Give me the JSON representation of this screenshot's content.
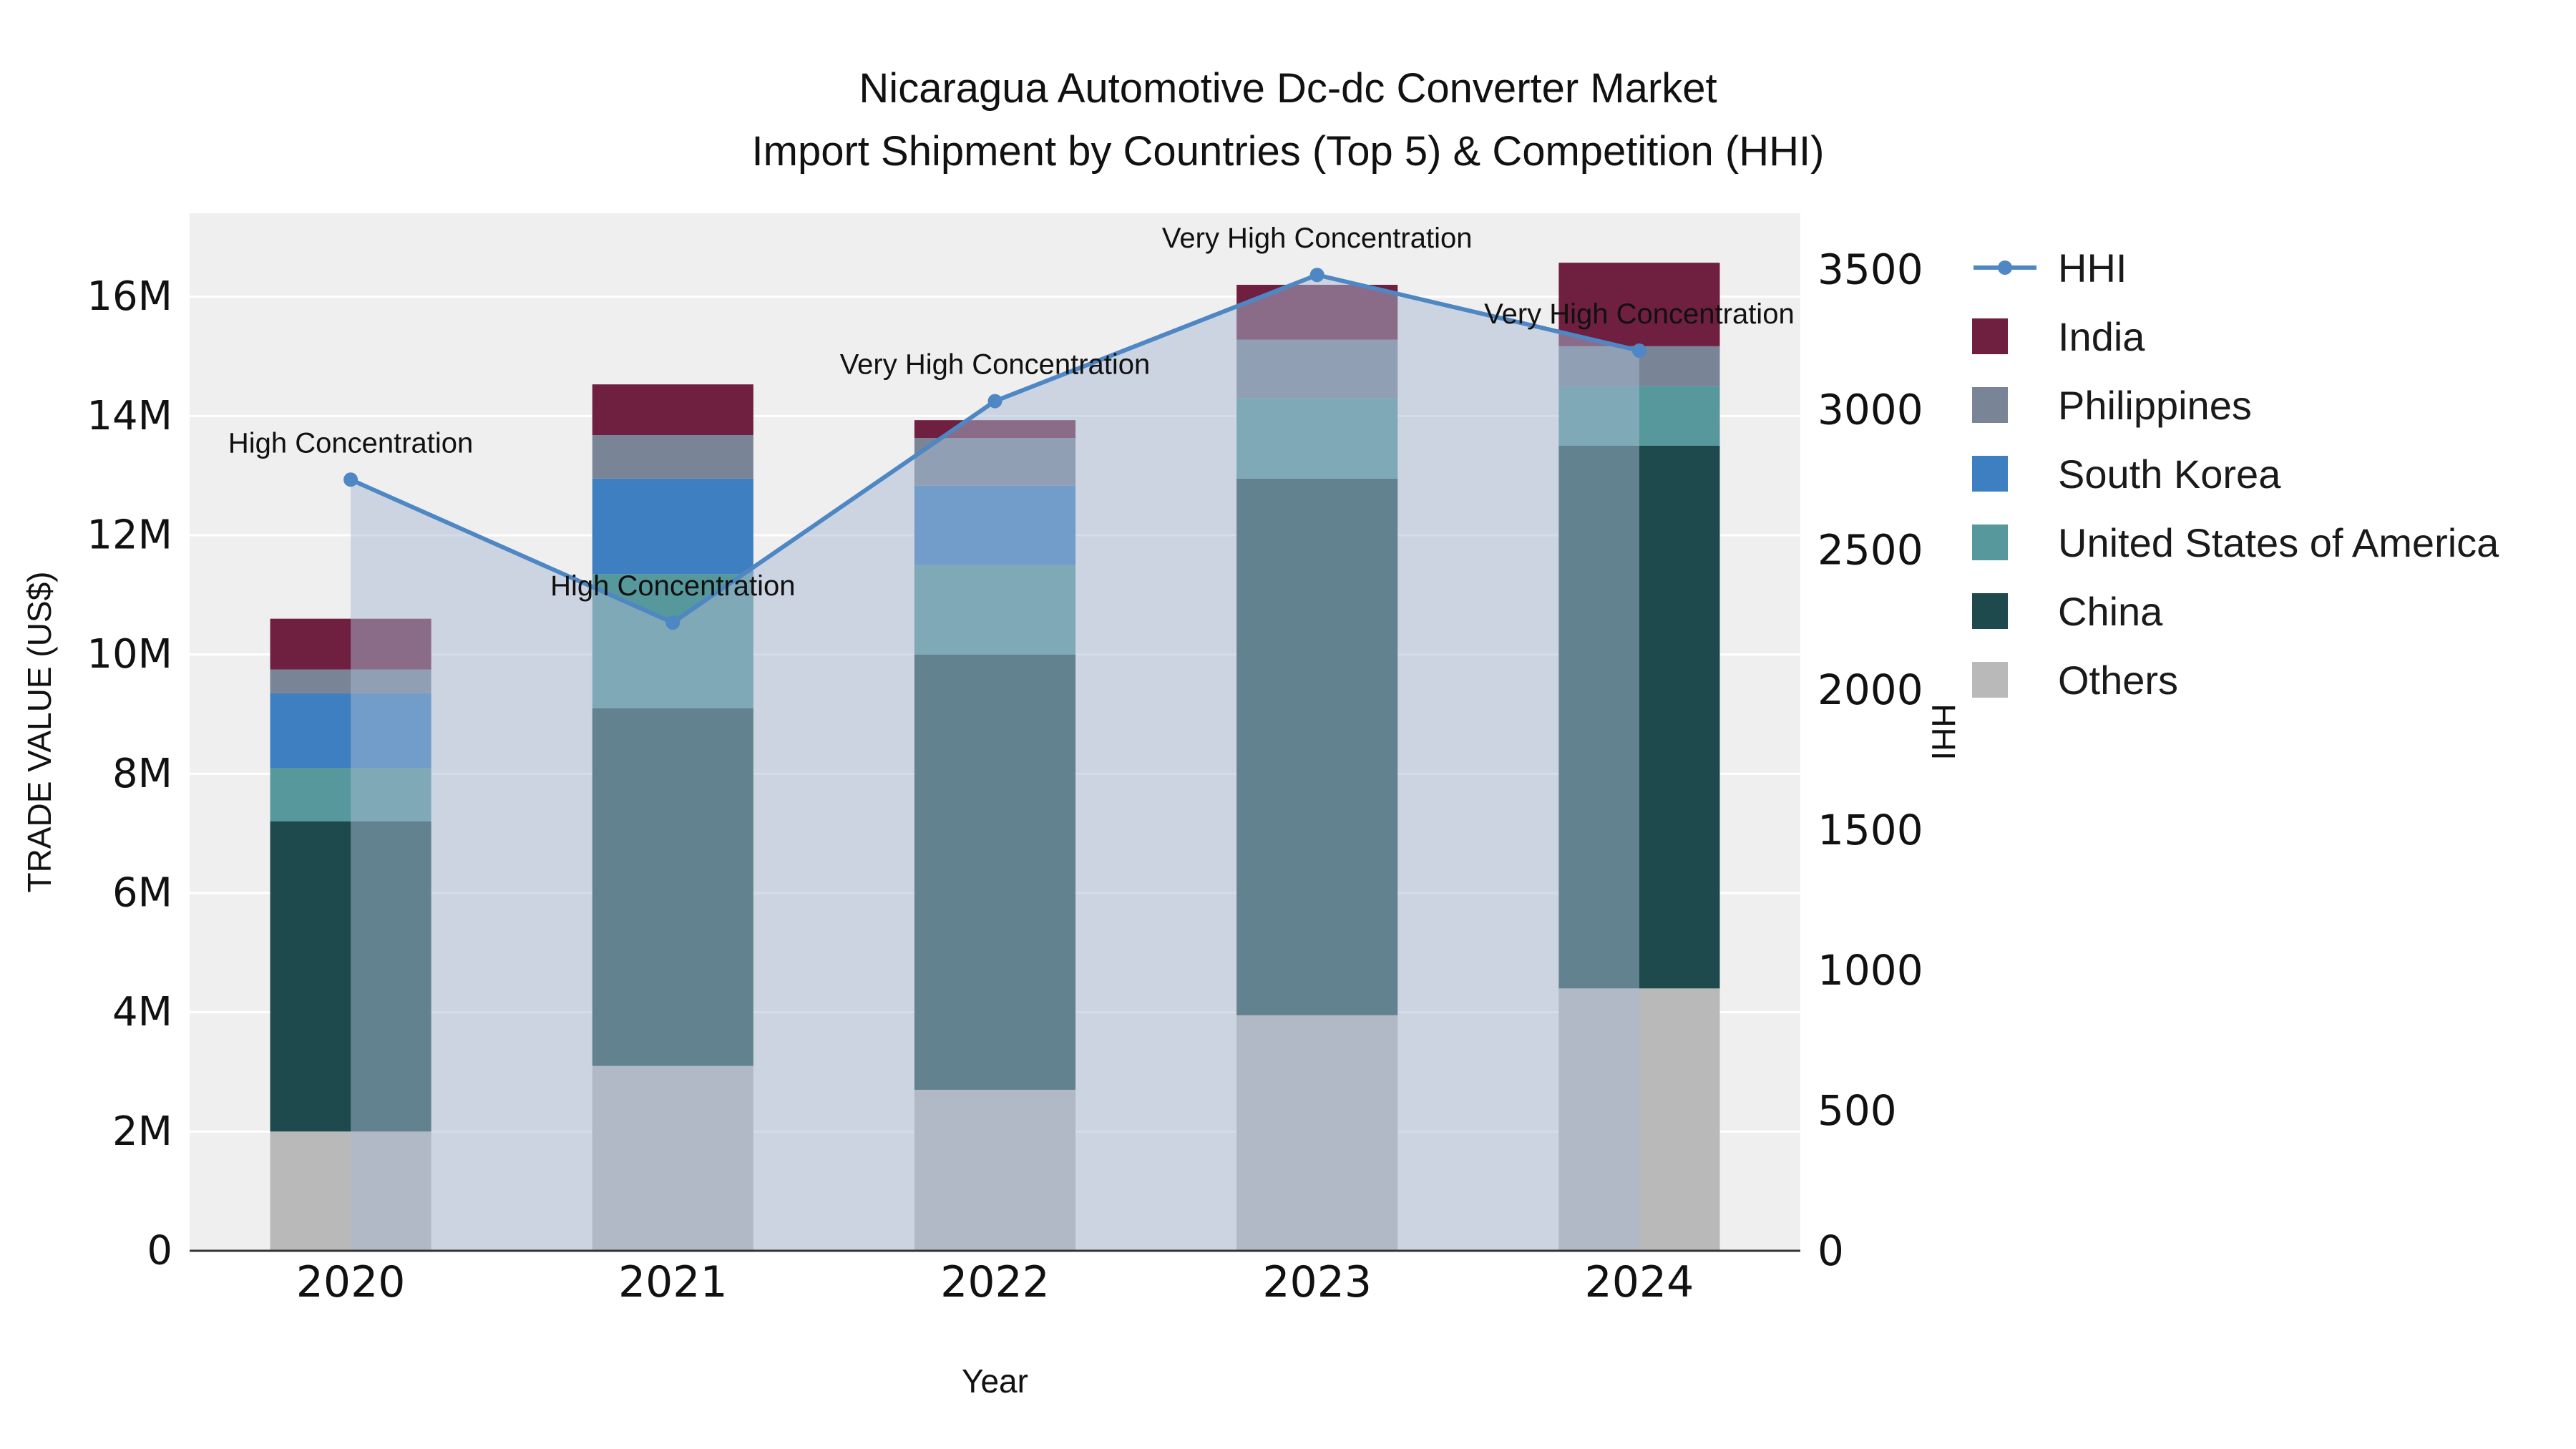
{
  "title": {
    "line1": "Nicaragua Automotive Dc-dc Converter Market",
    "line2": "Import Shipment by Countries (Top 5) & Competition (HHI)"
  },
  "chart_data": {
    "type": "combo-stacked-bar-line",
    "categories": [
      "2020",
      "2021",
      "2022",
      "2023",
      "2024"
    ],
    "xlabel": "Year",
    "ylabel_left": "TRADE VALUE (US$)",
    "ylabel_right": "HHI",
    "ylim_left": [
      0,
      17400000
    ],
    "ylim_right": [
      0,
      3700
    ],
    "y_left_ticks": [
      "0",
      "2M",
      "4M",
      "6M",
      "8M",
      "10M",
      "12M",
      "14M",
      "16M"
    ],
    "y_left_tick_values": [
      0,
      2000000,
      4000000,
      6000000,
      8000000,
      10000000,
      12000000,
      14000000,
      16000000
    ],
    "y_right_ticks": [
      "0",
      "500",
      "1000",
      "1500",
      "2000",
      "2500",
      "3000",
      "3500"
    ],
    "y_right_tick_values": [
      0,
      500,
      1000,
      1500,
      2000,
      2500,
      3000,
      3500
    ],
    "grid_color": "#ffffff",
    "plot_bg_color": "#efefef",
    "bar_series": [
      {
        "name": "Others",
        "color": "#b9b9b9",
        "values": [
          2000000,
          3100000,
          2700000,
          3950000,
          4400000
        ]
      },
      {
        "name": "China",
        "color": "#1f4a4d",
        "values": [
          5200000,
          6000000,
          7300000,
          9000000,
          9100000
        ]
      },
      {
        "name": "United States of America",
        "color": "#56989c",
        "values": [
          900000,
          2250000,
          1500000,
          1350000,
          1000000
        ]
      },
      {
        "name": "South Korea",
        "color": "#3d7fc1",
        "values": [
          1250000,
          1600000,
          1330000,
          0,
          0
        ]
      },
      {
        "name": "Philippines",
        "color": "#7a8497",
        "values": [
          400000,
          730000,
          800000,
          980000,
          670000
        ]
      },
      {
        "name": "India",
        "color": "#6f1f3f",
        "values": [
          850000,
          850000,
          300000,
          920000,
          1400000
        ]
      }
    ],
    "line_series": {
      "name": "HHI",
      "color": "#4e87c3",
      "area_color": "rgba(168,186,209,0.5)",
      "values": [
        2750,
        2240,
        3030,
        3480,
        3210
      ]
    },
    "annotations": [
      "High Concentration",
      "High Concentration",
      "Very High Concentration",
      "Very High Concentration",
      "Very High Concentration"
    ],
    "legend": [
      {
        "label": "HHI",
        "color": "#4e87c3",
        "type": "line"
      },
      {
        "label": "India",
        "color": "#6f1f3f",
        "type": "square"
      },
      {
        "label": "Philippines",
        "color": "#7a8497",
        "type": "square"
      },
      {
        "label": "South Korea",
        "color": "#3d7fc1",
        "type": "square"
      },
      {
        "label": "United States of America",
        "color": "#56989c",
        "type": "square"
      },
      {
        "label": "China",
        "color": "#1f4a4d",
        "type": "square"
      },
      {
        "label": "Others",
        "color": "#b9b9b9",
        "type": "square"
      }
    ]
  }
}
